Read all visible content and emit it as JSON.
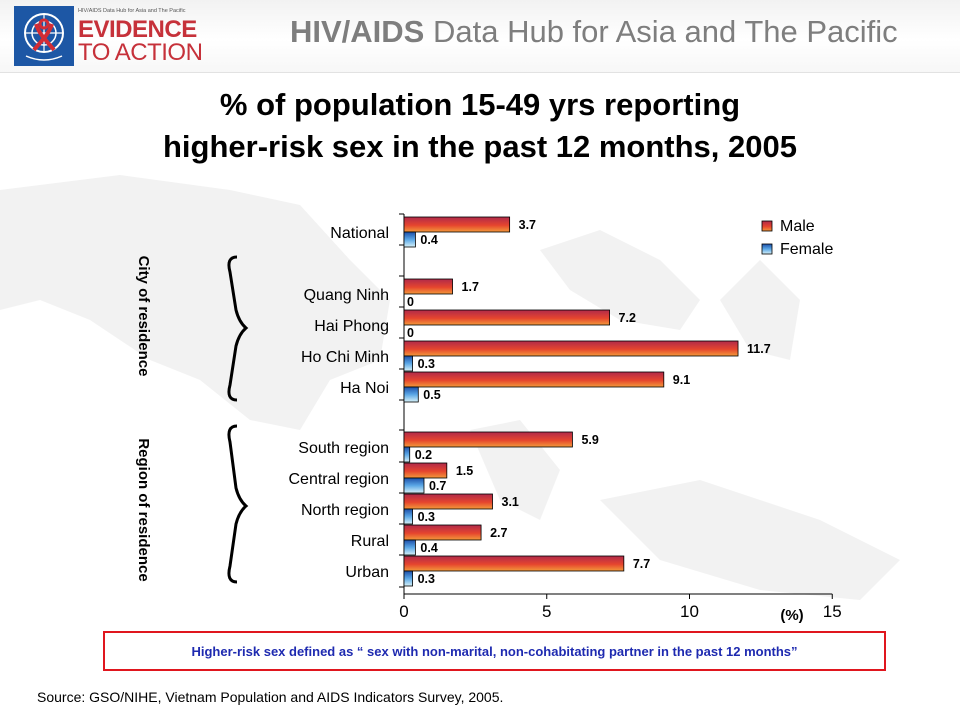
{
  "header": {
    "logo_subtitle": "HIV/AIDS Data Hub for Asia and The Pacific",
    "logo_line1": "EVIDENCE",
    "logo_line2": "TO ACTION",
    "hub_title_bold": "HIV/AIDS",
    "hub_title_rest": " Data Hub for Asia and The Pacific"
  },
  "title_line1": "% of population 15-49 yrs reporting",
  "title_line2": "higher-risk sex in the past 12 months, 2005",
  "group_labels": {
    "city": "City of residence",
    "region": "Region of residence"
  },
  "definition": "Higher-risk sex defined as “ sex with non-marital, non-cohabitating partner in the past 12 months”",
  "source": "Source: GSO/NIHE,  Vietnam Population and AIDS Indicators Survey, 2005.",
  "colors": {
    "male": "#e0402a",
    "female": "#5aa7e6",
    "box_border": "#e0161e",
    "definition_text": "#1e2ab0",
    "header_title": "#7e7e7e"
  },
  "chart_data": {
    "type": "bar",
    "orientation": "horizontal",
    "categories": [
      "National",
      "Quang Ninh",
      "Hai Phong",
      "Ho Chi Minh",
      "Ha Noi",
      "South region",
      "Central region",
      "North region",
      "Rural",
      "Urban"
    ],
    "series": [
      {
        "name": "Male",
        "values": [
          3.7,
          1.7,
          7.2,
          11.7,
          9.1,
          5.9,
          1.5,
          3.1,
          2.7,
          7.7
        ],
        "labels": [
          "3.7",
          "1.7",
          "7.2",
          "11.7",
          "9.1",
          "5.9",
          "1.5",
          "3.1",
          "2.7",
          "7.7"
        ]
      },
      {
        "name": "Female",
        "values": [
          0.4,
          0,
          0,
          0.3,
          0.5,
          0.2,
          0.7,
          0.3,
          0.4,
          0.3
        ],
        "labels": [
          "0.4",
          "0",
          "0",
          "0.3",
          "0.5",
          "0.2",
          "0.7",
          "0.3",
          "0.4",
          "0.3"
        ]
      }
    ],
    "xlim": [
      0,
      15
    ],
    "xticks": [
      "0",
      "5",
      "10",
      "15"
    ],
    "unit_label": "(%)",
    "legend_position": "top-right",
    "grid": false
  }
}
